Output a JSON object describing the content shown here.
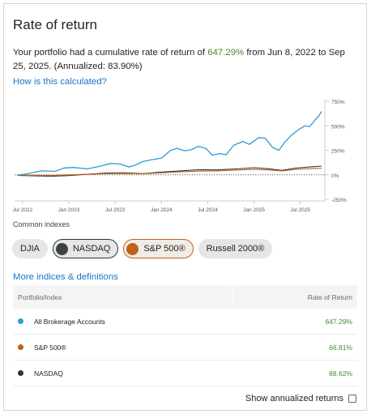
{
  "header": {
    "title": "Rate of return"
  },
  "summary": {
    "prefix": "Your portfolio had a cumulative rate of return of ",
    "cumulative_return": "647.29%",
    "middle": " from Jun 8, 2022 to Sep 25, 2025. (Annualized: 83.90%)"
  },
  "links": {
    "how_calculated": "How is this calculated?",
    "more_indices": "More indices & definitions"
  },
  "chart_data": {
    "type": "line",
    "x_tick_labels": [
      "Jul 2022",
      "Jan 2023",
      "Jul 2023",
      "Jan 2024",
      "Jul 2024",
      "Jan 2025",
      "Jul 2025"
    ],
    "y_tick_labels": [
      "750%",
      "500%",
      "250%",
      "0%",
      "-250%"
    ],
    "y_ticks": [
      750,
      500,
      250,
      0,
      -250
    ],
    "ylim": [
      -250,
      750
    ],
    "xlim": [
      2022.44,
      2025.73
    ],
    "x_ticks": [
      2022.5,
      2023.0,
      2023.5,
      2024.0,
      2024.5,
      2025.0,
      2025.5
    ],
    "zero_line": true,
    "colors": {
      "portfolio": "#2e9bd6",
      "sp500": "#c0621b",
      "nasdaq": "#2f3438",
      "axis": "#cccccc"
    },
    "series": [
      {
        "name": "All Brokerage Accounts",
        "color": "#2e9bd6",
        "x": [
          2022.44,
          2022.55,
          2022.7,
          2022.85,
          2022.95,
          2023.05,
          2023.2,
          2023.35,
          2023.45,
          2023.55,
          2023.65,
          2023.72,
          2023.8,
          2023.9,
          2024.0,
          2024.1,
          2024.17,
          2024.25,
          2024.32,
          2024.4,
          2024.48,
          2024.55,
          2024.62,
          2024.7,
          2024.78,
          2024.88,
          2024.95,
          2025.05,
          2025.12,
          2025.2,
          2025.27,
          2025.33,
          2025.4,
          2025.48,
          2025.55,
          2025.6,
          2025.66,
          2025.7,
          2025.73
        ],
        "values": [
          -5,
          10,
          40,
          35,
          70,
          75,
          60,
          90,
          115,
          110,
          80,
          100,
          135,
          155,
          170,
          250,
          270,
          245,
          255,
          290,
          270,
          200,
          215,
          205,
          300,
          340,
          310,
          380,
          375,
          280,
          250,
          330,
          400,
          460,
          500,
          490,
          560,
          600,
          647
        ]
      },
      {
        "name": "S&P 500®",
        "color": "#c0621b",
        "x": [
          2022.44,
          2022.6,
          2022.8,
          2023.0,
          2023.2,
          2023.4,
          2023.6,
          2023.8,
          2024.0,
          2024.2,
          2024.4,
          2024.6,
          2024.8,
          2025.0,
          2025.15,
          2025.3,
          2025.45,
          2025.6,
          2025.73
        ],
        "values": [
          -3,
          -5,
          -8,
          0,
          5,
          12,
          14,
          10,
          20,
          30,
          38,
          40,
          48,
          55,
          50,
          40,
          55,
          62,
          67
        ]
      },
      {
        "name": "NASDAQ",
        "color": "#2f3438",
        "x": [
          2022.44,
          2022.6,
          2022.8,
          2023.0,
          2023.2,
          2023.4,
          2023.6,
          2023.8,
          2024.0,
          2024.2,
          2024.4,
          2024.6,
          2024.8,
          2025.0,
          2025.15,
          2025.3,
          2025.45,
          2025.6,
          2025.73
        ],
        "values": [
          -5,
          -10,
          -15,
          -8,
          5,
          18,
          20,
          12,
          28,
          40,
          52,
          50,
          60,
          72,
          62,
          45,
          68,
          80,
          89
        ]
      }
    ]
  },
  "indexes": {
    "label": "Common indexes",
    "chips": [
      {
        "label": "DJIA",
        "selected": false
      },
      {
        "label": "NASDAQ",
        "selected": true,
        "color": "#2f3438"
      },
      {
        "label": "S&P 500®",
        "selected": true,
        "color": "#c0621b"
      },
      {
        "label": "Russell 2000®",
        "selected": false
      }
    ]
  },
  "table": {
    "col_portfolio": "Portfolio/Index",
    "col_return": "Rate of Return",
    "rows": [
      {
        "name": "All Brokerage Accounts",
        "ret": "647.29%",
        "color": "#2e9bd6"
      },
      {
        "name": "S&P 500®",
        "ret": "66.81%",
        "color": "#c0621b"
      },
      {
        "name": "NASDAQ",
        "ret": "88.62%",
        "color": "#2f3438"
      }
    ]
  },
  "footer": {
    "annualized_label": "Show annualized returns"
  }
}
